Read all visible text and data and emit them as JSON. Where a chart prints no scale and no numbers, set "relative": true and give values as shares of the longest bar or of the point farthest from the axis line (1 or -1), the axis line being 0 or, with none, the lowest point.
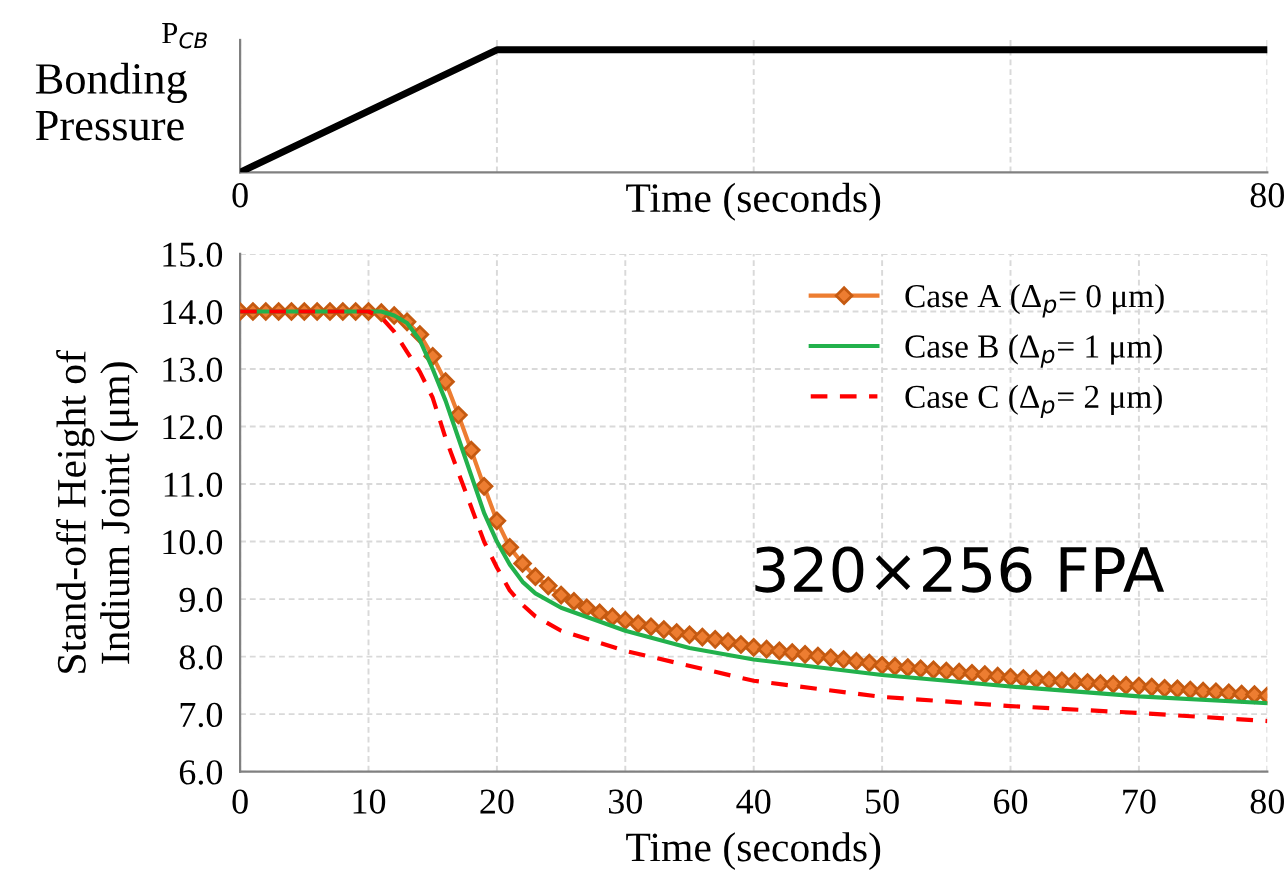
{
  "chart_data": [
    {
      "type": "line",
      "relative": true,
      "ylabel": "Bonding\nPressure",
      "xlabel": "Time (seconds)",
      "annotations": [
        "P$_{CB}$"
      ],
      "xlim": [
        0,
        80
      ],
      "xticks": [
        0,
        {
          "value": 20,
          "label": null
        },
        {
          "value": 40,
          "label": null
        },
        {
          "value": 60,
          "label": null
        },
        80
      ],
      "grid": "x",
      "legend": false,
      "series": [
        {
          "color": "#000000",
          "x": [
            0,
            20,
            80
          ],
          "values": [
            0,
            1,
            1
          ]
        }
      ]
    },
    {
      "type": "line",
      "xlabel": "Time (seconds)",
      "ylabel": "Stand-off Height of\nIndium Joint (μm)",
      "annotations": [
        "320×256 FPA"
      ],
      "xlim": [
        0,
        80
      ],
      "xticks": [
        0,
        10,
        20,
        30,
        40,
        50,
        60,
        70,
        80
      ],
      "ylim": [
        6.0,
        15.0
      ],
      "yticks": [
        {
          "value": 6,
          "label": "6.0"
        },
        {
          "value": 7,
          "label": "7.0"
        },
        {
          "value": 8,
          "label": "8.0"
        },
        {
          "value": 9,
          "label": "9.0"
        },
        {
          "value": 10,
          "label": "10.0"
        },
        {
          "value": 11,
          "label": "11.0"
        },
        {
          "value": 12,
          "label": "12.0"
        },
        {
          "value": 13,
          "label": "13.0"
        },
        {
          "value": 14,
          "label": "14.0"
        },
        {
          "value": 15,
          "label": "15.0"
        }
      ],
      "grid": true,
      "legend": "top right",
      "series": [
        {
          "name": "Case A (Δ$_{p}$= 0 μm)",
          "color": "#ed7d31",
          "marker": "diamond",
          "line_style": "solid",
          "x": [
            0,
            1,
            2,
            3,
            4,
            5,
            6,
            7,
            8,
            9,
            10,
            11,
            12,
            13,
            14,
            15,
            16,
            17,
            18,
            19,
            20,
            21,
            22,
            23,
            24,
            25,
            26,
            27,
            28,
            29,
            30,
            31,
            32,
            33,
            34,
            35,
            36,
            37,
            38,
            39,
            40,
            41,
            42,
            43,
            44,
            45,
            46,
            47,
            48,
            49,
            50,
            51,
            52,
            53,
            54,
            55,
            56,
            57,
            58,
            59,
            60,
            61,
            62,
            63,
            64,
            65,
            66,
            67,
            68,
            69,
            70,
            71,
            72,
            73,
            74,
            75,
            76,
            77,
            78,
            79,
            80
          ],
          "values": [
            14.0,
            14.0,
            14.0,
            14.0,
            14.0,
            14.0,
            14.0,
            14.0,
            14.0,
            14.0,
            14.0,
            13.98,
            13.93,
            13.82,
            13.6,
            13.22,
            12.78,
            12.2,
            11.59,
            10.96,
            10.36,
            9.9,
            9.62,
            9.39,
            9.23,
            9.07,
            8.96,
            8.85,
            8.76,
            8.69,
            8.63,
            8.57,
            8.52,
            8.47,
            8.42,
            8.38,
            8.34,
            8.3,
            8.26,
            8.21,
            8.16,
            8.13,
            8.1,
            8.07,
            8.04,
            8.01,
            7.98,
            7.95,
            7.92,
            7.89,
            7.85,
            7.83,
            7.81,
            7.79,
            7.77,
            7.75,
            7.73,
            7.71,
            7.69,
            7.66,
            7.64,
            7.62,
            7.61,
            7.59,
            7.58,
            7.56,
            7.55,
            7.53,
            7.52,
            7.5,
            7.49,
            7.47,
            7.45,
            7.44,
            7.42,
            7.4,
            7.39,
            7.37,
            7.35,
            7.34,
            7.32
          ]
        },
        {
          "name": "Case B (Δ$_{p}$= 1 μm)",
          "color": "#22b14c",
          "marker": "none",
          "line_style": "solid",
          "x": [
            0,
            11,
            12,
            13,
            14,
            15,
            16,
            17,
            18,
            19,
            20,
            21,
            22,
            23,
            25,
            30,
            35,
            40,
            50,
            60,
            70,
            80
          ],
          "values": [
            14.0,
            14.0,
            13.93,
            13.8,
            13.5,
            13.0,
            12.45,
            11.8,
            11.15,
            10.5,
            10.0,
            9.6,
            9.3,
            9.1,
            8.85,
            8.45,
            8.15,
            7.95,
            7.68,
            7.48,
            7.31,
            7.19
          ]
        },
        {
          "name": "Case C (Δ$_{p}$= 2 μm)",
          "color": "#ff0000",
          "marker": "none",
          "line_style": "dashed",
          "x": [
            0,
            10,
            11,
            12,
            13,
            14,
            15,
            16,
            17,
            18,
            19,
            20,
            21,
            22,
            23,
            25,
            30,
            40,
            50,
            60,
            70,
            80
          ],
          "values": [
            14.0,
            14.0,
            13.9,
            13.65,
            13.3,
            12.95,
            12.5,
            11.8,
            11.2,
            10.6,
            10.0,
            9.55,
            9.15,
            8.9,
            8.7,
            8.45,
            8.1,
            7.58,
            7.3,
            7.14,
            7.02,
            6.88
          ]
        }
      ]
    }
  ]
}
